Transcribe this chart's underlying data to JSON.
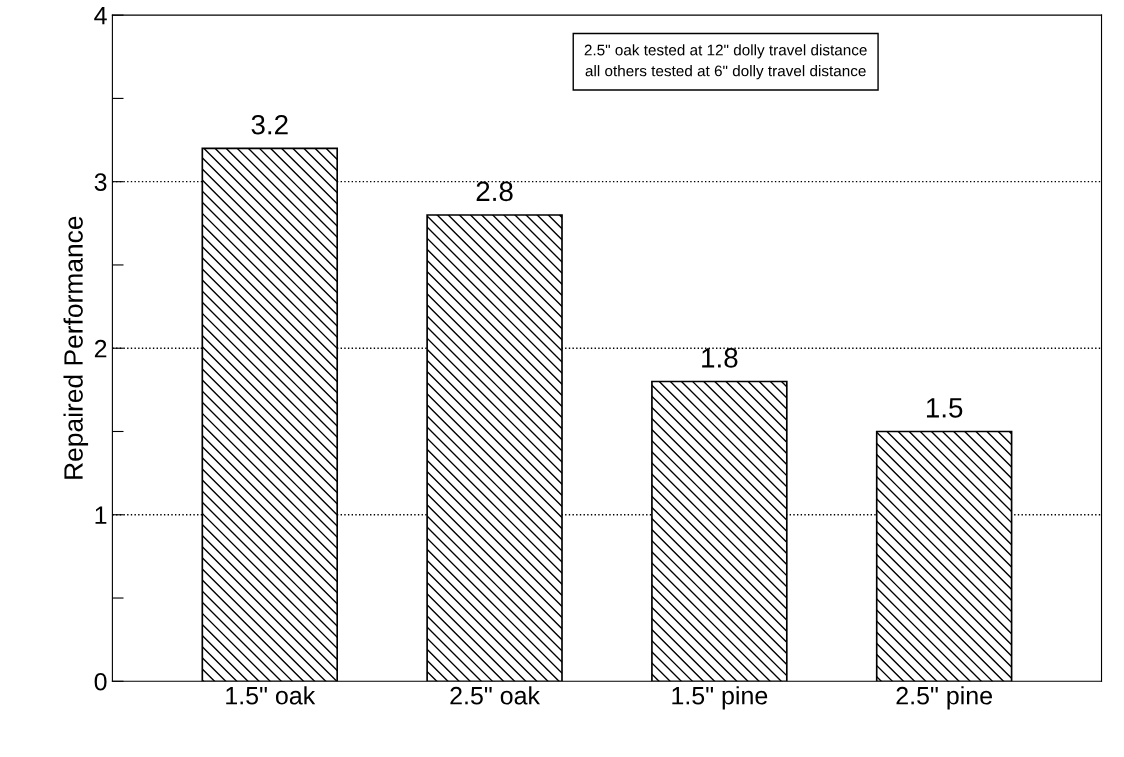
{
  "chart_data": {
    "type": "bar",
    "ylabel": "Repaired Performance",
    "categories": [
      "1.5\" oak",
      "2.5\" oak",
      "1.5\" pine",
      "2.5\" pine"
    ],
    "values": [
      3.2,
      2.8,
      1.8,
      1.5
    ],
    "color": "#000000",
    "data_labels": true,
    "ylim": [
      0,
      4
    ],
    "yticks": [
      0,
      {
        "value": 0.5,
        "label": null
      },
      1,
      {
        "value": 1.5,
        "label": null
      },
      2,
      {
        "value": 2.5,
        "label": null
      },
      3,
      {
        "value": 3.5,
        "label": null
      },
      4
    ],
    "grid": "y",
    "line_style": "dotted",
    "annotations": [
      "2.5\" oak tested at 12\" dolly travel distance",
      "all others tested at 6\" dolly travel distance"
    ]
  }
}
